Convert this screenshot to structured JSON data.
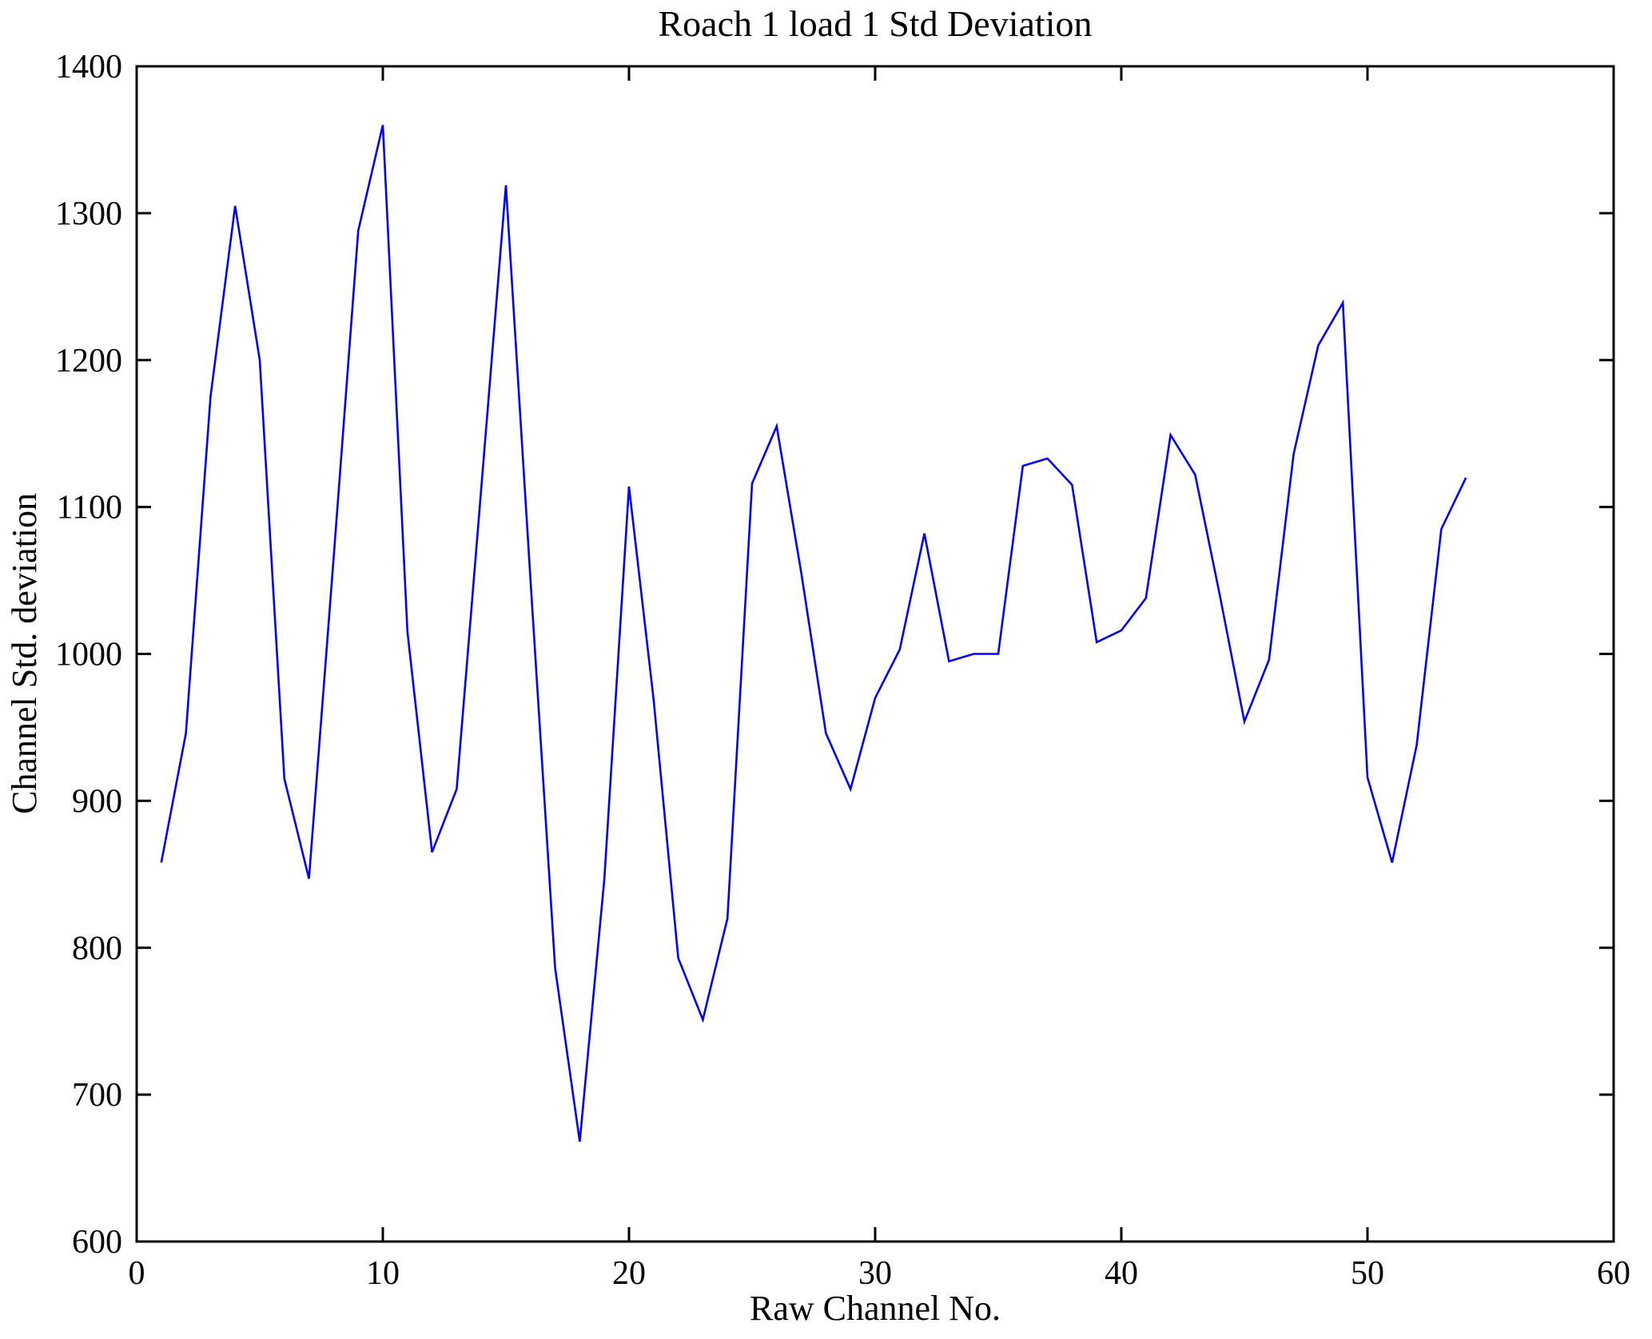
{
  "figure": {
    "background": "#ffffff",
    "axis_color": "#000000"
  },
  "chart_data": {
    "type": "line",
    "title": "Roach 1 load 1 Std Deviation",
    "xlabel": "Raw Channel No.",
    "ylabel": "Channel Std. deviation",
    "xlim": [
      0,
      60
    ],
    "ylim": [
      600,
      1400
    ],
    "xticks": [
      0,
      10,
      20,
      30,
      40,
      50,
      60
    ],
    "yticks": [
      600,
      700,
      800,
      900,
      1000,
      1100,
      1200,
      1300,
      1400
    ],
    "grid": false,
    "legend": null,
    "box": true,
    "line_color": "#0000FF",
    "x": [
      1,
      2,
      3,
      4,
      5,
      6,
      7,
      8,
      9,
      10,
      11,
      12,
      13,
      14,
      15,
      16,
      17,
      18,
      19,
      20,
      21,
      22,
      23,
      24,
      25,
      26,
      27,
      28,
      29,
      30,
      31,
      32,
      33,
      34,
      35,
      36,
      37,
      38,
      39,
      40,
      41,
      42,
      43,
      44,
      45,
      46,
      47,
      48,
      49,
      50,
      51,
      52,
      53,
      54
    ],
    "y": [
      858,
      946,
      1175,
      1305,
      1200,
      915,
      847,
      1065,
      1288,
      1360,
      1015,
      865,
      908,
      1113,
      1319,
      1050,
      786,
      668,
      847,
      1114,
      969,
      793,
      751,
      820,
      1116,
      1155,
      1055,
      946,
      908,
      970,
      1003,
      1082,
      995,
      1000,
      1000,
      1128,
      1133,
      1115,
      1008,
      1016,
      1038,
      1149,
      1122,
      1040,
      954,
      996,
      1136,
      1210,
      1239,
      916,
      858,
      938,
      1085,
      1120
    ]
  }
}
